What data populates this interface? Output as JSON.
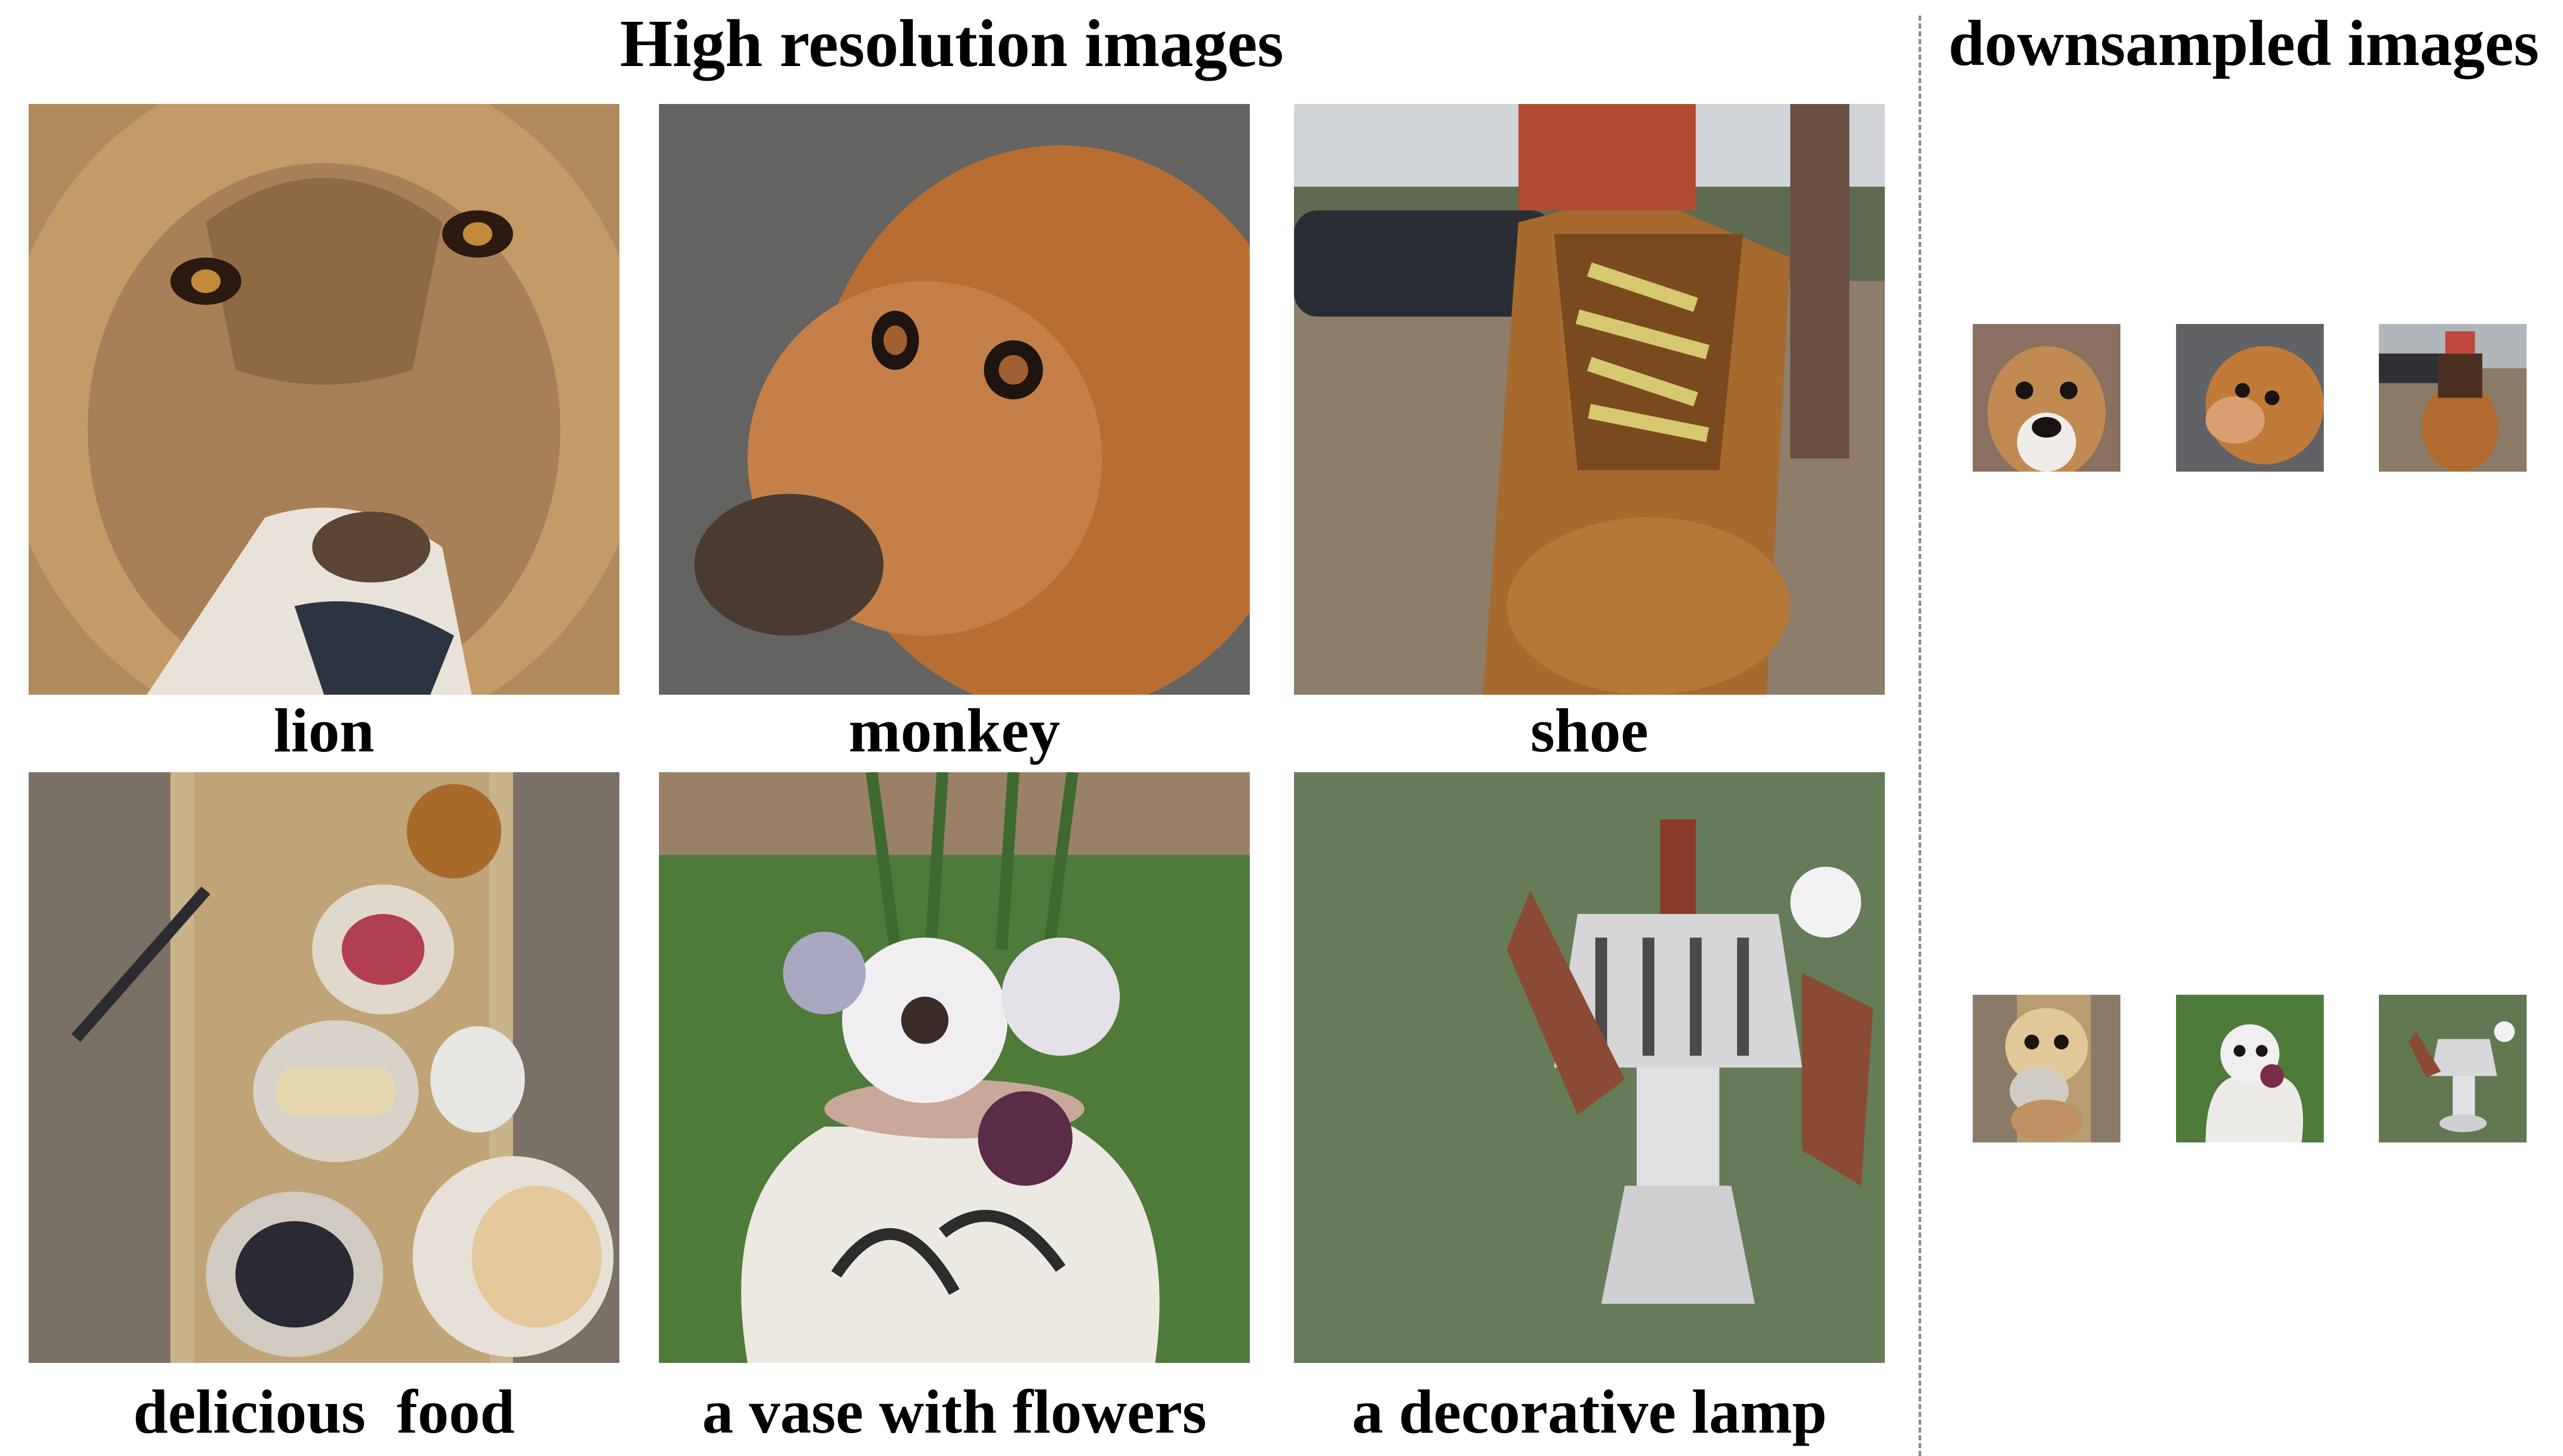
{
  "titles": {
    "high_resolution": "High resolution images",
    "downsampled": "downsampled images"
  },
  "high_resolution_images": [
    {
      "caption": "lion",
      "icon": "lion-image"
    },
    {
      "caption": "monkey",
      "icon": "monkey-image"
    },
    {
      "caption": "shoe",
      "icon": "shoe-image"
    },
    {
      "caption": "delicious  food",
      "icon": "food-image"
    },
    {
      "caption": "a vase with flowers",
      "icon": "vase-image"
    },
    {
      "caption": "a decorative lamp",
      "icon": "lamp-image"
    }
  ],
  "downsampled_images": [
    {
      "icon": "dog-thumbnail"
    },
    {
      "icon": "dog-thumbnail"
    },
    {
      "icon": "dog-thumbnail"
    },
    {
      "icon": "dog-thumbnail"
    },
    {
      "icon": "dog-thumbnail"
    },
    {
      "icon": "dog-thumbnail"
    }
  ],
  "colors": {
    "background": "#ffffff",
    "text": "#000000",
    "divider": "#8a8a8a"
  }
}
